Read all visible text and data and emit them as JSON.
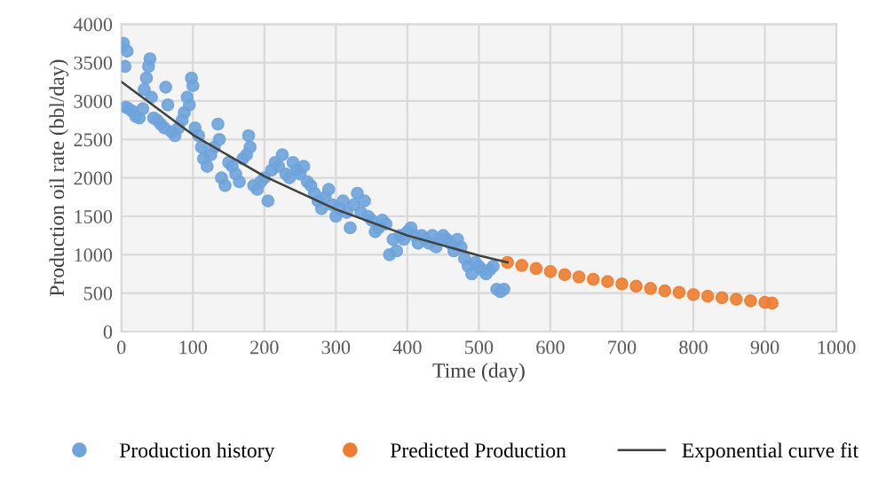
{
  "chart_data": {
    "type": "scatter",
    "xlabel": "Time (day)",
    "ylabel": "Production oil rate (bbl/day)",
    "xlim": [
      0,
      1000
    ],
    "xticks": [
      0,
      100,
      200,
      300,
      400,
      500,
      600,
      700,
      800,
      900,
      1000
    ],
    "ylim": [
      0,
      4000
    ],
    "yticks": [
      0,
      500,
      1000,
      1500,
      2000,
      2500,
      3000,
      3500,
      4000
    ],
    "grid": true,
    "legend": "bottom",
    "marker": "circle",
    "series": [
      {
        "name": "Production history",
        "color": "#6fa3dc",
        "x": [
          0,
          3,
          5,
          8,
          6,
          10,
          15,
          20,
          25,
          30,
          32,
          35,
          38,
          40,
          42,
          45,
          50,
          55,
          60,
          62,
          65,
          70,
          75,
          80,
          85,
          88,
          92,
          95,
          98,
          100,
          103,
          108,
          112,
          115,
          120,
          125,
          130,
          135,
          137,
          140,
          145,
          150,
          155,
          160,
          165,
          170,
          175,
          178,
          180,
          185,
          190,
          195,
          200,
          205,
          210,
          215,
          220,
          225,
          230,
          235,
          240,
          245,
          250,
          255,
          260,
          265,
          270,
          275,
          280,
          285,
          290,
          295,
          300,
          305,
          310,
          315,
          320,
          325,
          330,
          335,
          340,
          345,
          350,
          355,
          360,
          365,
          370,
          375,
          380,
          385,
          390,
          395,
          400,
          405,
          410,
          415,
          420,
          425,
          430,
          435,
          440,
          445,
          450,
          455,
          460,
          465,
          470,
          475,
          480,
          485,
          490,
          495,
          500,
          505,
          510,
          515,
          520,
          525,
          530,
          535
        ],
        "values": [
          3700,
          3750,
          3450,
          3650,
          2920,
          2900,
          2870,
          2800,
          2780,
          2900,
          3150,
          3300,
          3450,
          3550,
          3050,
          2780,
          2750,
          2700,
          2650,
          3180,
          2950,
          2600,
          2550,
          2650,
          2750,
          2850,
          3050,
          2950,
          3300,
          3200,
          2650,
          2550,
          2400,
          2250,
          2150,
          2300,
          2400,
          2700,
          2500,
          2000,
          1900,
          2200,
          2150,
          2050,
          1950,
          2250,
          2300,
          2550,
          2400,
          1900,
          1850,
          1950,
          2000,
          1700,
          2100,
          2200,
          2150,
          2300,
          2050,
          2000,
          2200,
          2100,
          2050,
          2150,
          1950,
          1900,
          1800,
          1700,
          1600,
          1750,
          1850,
          1650,
          1500,
          1600,
          1700,
          1550,
          1350,
          1650,
          1800,
          1550,
          1700,
          1500,
          1450,
          1300,
          1350,
          1450,
          1400,
          1000,
          1200,
          1050,
          1250,
          1200,
          1300,
          1350,
          1250,
          1150,
          1250,
          1200,
          1150,
          1250,
          1100,
          1200,
          1250,
          1200,
          1150,
          1050,
          1200,
          1100,
          950,
          850,
          750,
          900,
          850,
          800,
          750,
          800,
          850,
          550,
          520,
          550
        ]
      },
      {
        "name": "Predicted Production",
        "color": "#ed7d31",
        "x": [
          540,
          560,
          580,
          600,
          620,
          640,
          660,
          680,
          700,
          720,
          740,
          760,
          780,
          800,
          820,
          840,
          860,
          880,
          900,
          910
        ],
        "values": [
          900,
          860,
          820,
          780,
          740,
          710,
          680,
          650,
          620,
          590,
          560,
          530,
          510,
          480,
          460,
          440,
          420,
          400,
          380,
          370
        ]
      },
      {
        "name": "Exponential curve fit",
        "type": "line",
        "color": "#404040",
        "marker": "none",
        "x": [
          0,
          100,
          200,
          300,
          400,
          500,
          540
        ],
        "values": [
          3250,
          2560,
          2020,
          1590,
          1250,
          990,
          900
        ]
      }
    ]
  }
}
